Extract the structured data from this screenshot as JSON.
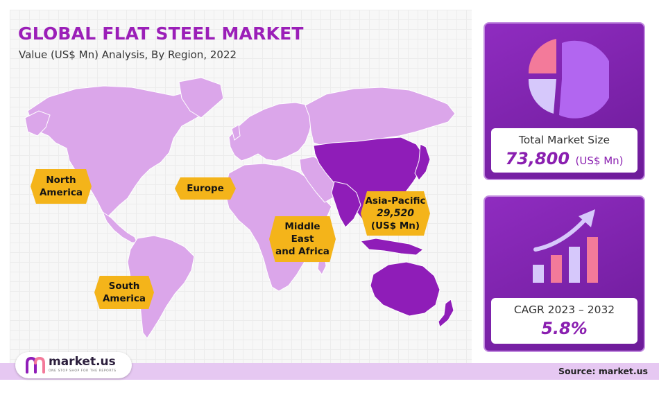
{
  "header": {
    "title": "GLOBAL FLAT STEEL MARKET",
    "subtitle": "Value (US$ Mn) Analysis, By Region, 2022"
  },
  "chart_data": {
    "type": "map",
    "title": "GLOBAL FLAT STEEL MARKET",
    "subtitle": "Value (US$ Mn) Analysis, By Region, 2022",
    "highlighted_region": "Asia-Pacific",
    "regions": [
      {
        "name": "North America"
      },
      {
        "name": "Europe"
      },
      {
        "name": "Middle East and Africa"
      },
      {
        "name": "South America"
      },
      {
        "name": "Asia-Pacific",
        "value": 29520,
        "value_label": "29,520",
        "unit": "(US$ Mn)"
      }
    ]
  },
  "labels": {
    "north_america": [
      "North",
      "America"
    ],
    "europe": "Europe",
    "mea": [
      "Middle",
      "East",
      "and Africa"
    ],
    "south_america": [
      "South",
      "America"
    ],
    "asia_pacific": {
      "name": "Asia-Pacific",
      "value": "29,520",
      "unit": "(US$ Mn)"
    }
  },
  "summary": {
    "total_label": "Total Market Size",
    "total_value": "73,800",
    "total_unit": "(US$ Mn)",
    "cagr_label": "CAGR 2023 – 2032",
    "cagr_value": "5.8%"
  },
  "icons": {
    "market_size": "pie-chart-icon",
    "cagr": "growth-bar-chart-icon"
  },
  "footer": {
    "logo_text": "market.us",
    "logo_tagline": "ONE STOP SHOP FOR THE REPORTS",
    "source": "Source: market.us"
  },
  "colors": {
    "title": "#9b1fb8",
    "map_light": "#dba6ea",
    "map_highlight": "#8f1db8",
    "label_bg": "#f4b41a",
    "card_bg": "#7d22ab",
    "footer_bar": "#e6c8f2"
  }
}
